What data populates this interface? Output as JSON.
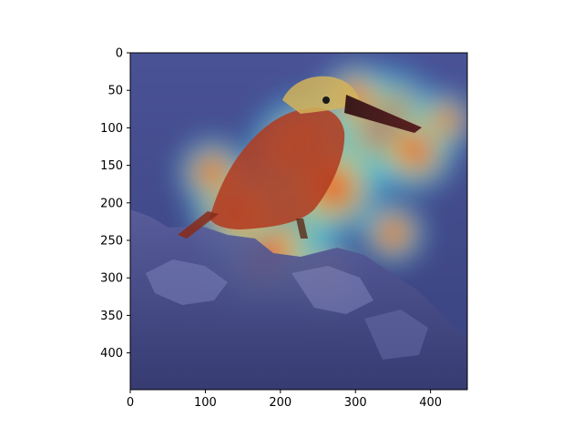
{
  "chart_data": {
    "type": "heatmap",
    "title": "",
    "xlabel": "",
    "ylabel": "",
    "image_width": 449,
    "image_height": 449,
    "xlim": [
      0,
      449
    ],
    "ylim": [
      449,
      0
    ],
    "x_ticks": [
      0,
      100,
      200,
      300,
      400
    ],
    "y_ticks": [
      0,
      50,
      100,
      150,
      200,
      250,
      300,
      350,
      400
    ],
    "grid": false,
    "legend": "none",
    "colormap": "jet",
    "background_image": "kingfisher-bird-on-rocks",
    "heat_peak_color": "#ff2a00",
    "heat_mid_color": "#ffd23c",
    "heat_low_color": "#39c6e8",
    "heat_base_color": "#2d3b8f",
    "hotspots": [
      {
        "x": 240,
        "y": 140,
        "intensity": 1.0
      },
      {
        "x": 340,
        "y": 100,
        "intensity": 0.95
      },
      {
        "x": 200,
        "y": 230,
        "intensity": 0.9
      },
      {
        "x": 180,
        "y": 270,
        "intensity": 0.85
      },
      {
        "x": 270,
        "y": 180,
        "intensity": 0.8
      },
      {
        "x": 140,
        "y": 210,
        "intensity": 0.7
      },
      {
        "x": 380,
        "y": 130,
        "intensity": 0.65
      },
      {
        "x": 300,
        "y": 60,
        "intensity": 0.55
      },
      {
        "x": 420,
        "y": 90,
        "intensity": 0.45
      },
      {
        "x": 110,
        "y": 160,
        "intensity": 0.55
      },
      {
        "x": 350,
        "y": 240,
        "intensity": 0.5
      },
      {
        "x": 260,
        "y": 300,
        "intensity": 0.55
      }
    ]
  }
}
